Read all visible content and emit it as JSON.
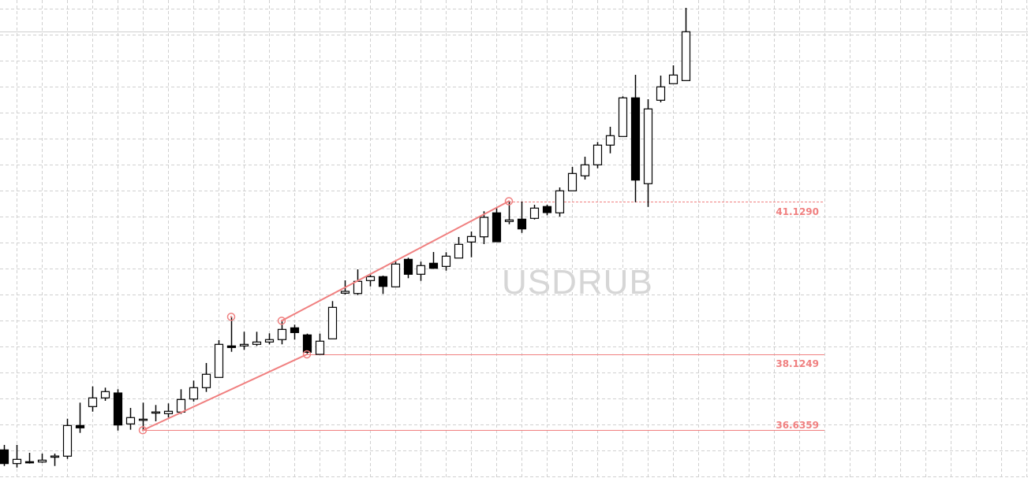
{
  "chart_data": {
    "type": "candlestick",
    "symbol_watermark": "USDRUB",
    "grid": true,
    "colors": {
      "bull_body": "#ffffff",
      "bear_body": "#000000",
      "outline": "#000000",
      "drawing": "#f08080",
      "grid": "#d0d0d0",
      "watermark": "#d6d6d6"
    },
    "candles_ohlc": [
      [
        36.25,
        36.348,
        35.935,
        35.982
      ],
      [
        35.982,
        36.348,
        35.904,
        36.065
      ],
      [
        36.019,
        36.193,
        35.982,
        35.997
      ],
      [
        36.013,
        36.178,
        35.997,
        36.049
      ],
      [
        36.127,
        36.178,
        35.935,
        36.13
      ],
      [
        36.127,
        36.862,
        36.074,
        36.729
      ],
      [
        36.729,
        37.177,
        36.584,
        36.683
      ],
      [
        37.1,
        37.496,
        37.001,
        37.27
      ],
      [
        37.27,
        37.471,
        37.213,
        37.394
      ],
      [
        37.367,
        37.44,
        36.63,
        36.739
      ],
      [
        36.76,
        37.074,
        36.646,
        36.884
      ],
      [
        36.85,
        37.177,
        36.636,
        36.853
      ],
      [
        36.992,
        37.131,
        36.811,
        36.995
      ],
      [
        36.961,
        37.162,
        36.888,
        37.008
      ],
      [
        36.992,
        37.44,
        36.955,
        37.239
      ],
      [
        37.248,
        37.61,
        37.198,
        37.471
      ],
      [
        37.471,
        37.955,
        37.388,
        37.734
      ],
      [
        37.672,
        38.403,
        37.672,
        38.321
      ],
      [
        38.29,
        38.861,
        38.175,
        38.259
      ],
      [
        38.29,
        38.568,
        38.213,
        38.321
      ],
      [
        38.321,
        38.568,
        38.29,
        38.367
      ],
      [
        38.367,
        38.537,
        38.321,
        38.414
      ],
      [
        38.414,
        38.784,
        38.321,
        38.614
      ],
      [
        38.645,
        38.707,
        38.414,
        38.552
      ],
      [
        38.506,
        38.531,
        38.125,
        38.166
      ],
      [
        38.125,
        38.531,
        38.125,
        38.383
      ],
      [
        38.429,
        39.17,
        38.429,
        39.047
      ],
      [
        39.325,
        39.577,
        39.299,
        39.361
      ],
      [
        39.319,
        39.793,
        39.288,
        39.557
      ],
      [
        39.572,
        39.711,
        39.458,
        39.649
      ],
      [
        39.649,
        39.67,
        39.31,
        39.458
      ],
      [
        39.449,
        39.952,
        39.449,
        39.897
      ],
      [
        39.989,
        40.02,
        39.619,
        39.696
      ],
      [
        39.696,
        39.943,
        39.566,
        39.866
      ],
      [
        39.912,
        40.133,
        39.804,
        39.813
      ],
      [
        39.85,
        40.128,
        39.767,
        40.051
      ],
      [
        40.014,
        40.427,
        40.014,
        40.283
      ],
      [
        40.329,
        40.535,
        40.029,
        40.437
      ],
      [
        40.431,
        40.932,
        40.288,
        40.813
      ],
      [
        40.901,
        40.998,
        40.334,
        40.334
      ],
      [
        40.731,
        41.129,
        40.678,
        40.762
      ],
      [
        40.777,
        41.122,
        40.508,
        40.586
      ],
      [
        40.793,
        41.06,
        40.771,
        40.994
      ],
      [
        41.025,
        41.06,
        40.855,
        40.906
      ],
      [
        40.901,
        41.4,
        40.828,
        41.333
      ],
      [
        41.333,
        41.802,
        41.333,
        41.673
      ],
      [
        41.627,
        42.002,
        41.554,
        41.843
      ],
      [
        41.843,
        42.291,
        41.775,
        42.23
      ],
      [
        42.23,
        42.59,
        42.069,
        42.415
      ],
      [
        42.399,
        43.187,
        42.399,
        43.157
      ],
      [
        43.157,
        43.609,
        41.111,
        41.544
      ],
      [
        41.473,
        43.13,
        41.018,
        42.94
      ],
      [
        43.11,
        43.594,
        43.069,
        43.373
      ],
      [
        43.435,
        43.795,
        43.435,
        43.605
      ],
      [
        43.496,
        44.923,
        43.496,
        44.454
      ]
    ],
    "current_price_line": 44.454,
    "price_levels": [
      {
        "label": "41.1290",
        "price": 41.129,
        "from_candle": 40,
        "style": "dashed"
      },
      {
        "label": "38.1249",
        "price": 38.1249,
        "from_candle": 24,
        "style": "solid"
      },
      {
        "label": "36.6359",
        "price": 36.6359,
        "from_candle": 11,
        "style": "solid"
      }
    ],
    "trendlines": [
      {
        "from": [
          11,
          36.6359
        ],
        "to": [
          24,
          38.1249
        ]
      },
      {
        "from": [
          22,
          38.784
        ],
        "to": [
          40,
          41.129
        ]
      }
    ],
    "markers": [
      {
        "candle": 11,
        "price": 36.6359
      },
      {
        "candle": 24,
        "price": 38.1249
      },
      {
        "candle": 22,
        "price": 38.784
      },
      {
        "candle": 40,
        "price": 41.129
      },
      {
        "candle": 18,
        "price": 38.861
      }
    ]
  }
}
